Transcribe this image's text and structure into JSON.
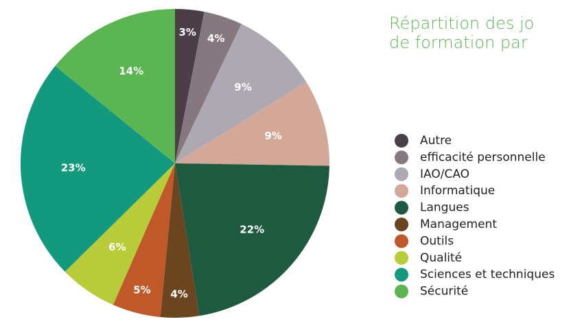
{
  "chart_data": {
    "type": "pie",
    "title_lines": [
      "Répartition des jo",
      "de formation par"
    ],
    "categories": [
      "Autre",
      "efficacité personnelle",
      "IAO/CAO",
      "Informatique",
      "Langues",
      "Management",
      "Outils",
      "Qualité",
      "Sciences et techniques",
      "Sécurité"
    ],
    "values": [
      3,
      4,
      9,
      9,
      22,
      4,
      5,
      6,
      23,
      14
    ],
    "value_labels": [
      "3%",
      "4%",
      "9%",
      "9%",
      "22%",
      "4%",
      "5%",
      "6%",
      "23%",
      "14%"
    ],
    "colors": [
      "#4a3f47",
      "#85787f",
      "#aea8b2",
      "#d4a898",
      "#1e5a40",
      "#6b4420",
      "#c0592a",
      "#b8cc3a",
      "#139a7e",
      "#5ab552"
    ]
  }
}
